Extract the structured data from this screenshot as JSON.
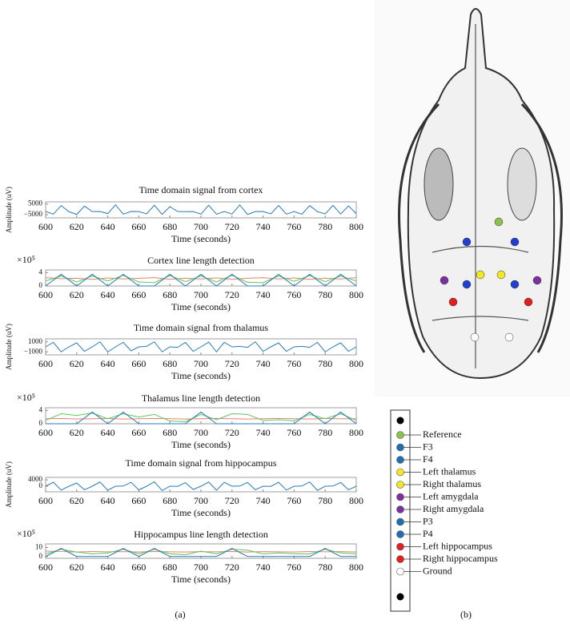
{
  "chart_data": [
    {
      "type": "line",
      "title": "Time domain signal from cortex",
      "xlabel": "Time (seconds)",
      "ylabel": "Amplitude (uV)",
      "x": [
        600,
        605,
        610,
        615,
        620,
        625,
        630,
        635,
        640,
        645,
        650,
        655,
        660,
        665,
        670,
        675,
        680,
        685,
        690,
        695,
        700,
        705,
        710,
        715,
        720,
        725,
        730,
        735,
        740,
        745,
        750,
        755,
        760,
        765,
        770,
        775,
        780,
        785,
        790,
        795,
        800
      ],
      "values": [
        -2000,
        -4500,
        3500,
        -2200,
        -4800,
        3000,
        -2100,
        -2000,
        -4000,
        4200,
        -4500,
        -2000,
        -2100,
        -4200,
        3800,
        -4700,
        2500,
        -2000,
        -2200,
        -2100,
        -4500,
        3900,
        -4600,
        -2000,
        -4400,
        4100,
        -4800,
        -2100,
        -2000,
        -4200,
        3600,
        -4500,
        -2000,
        -4600,
        3500,
        -2100,
        -4300,
        3700,
        -4400,
        3200,
        -4000
      ],
      "color": "#2a7ab8",
      "xlim": [
        600,
        800
      ],
      "xticks": [
        600,
        620,
        640,
        660,
        680,
        700,
        720,
        740,
        760,
        780,
        800
      ],
      "ylim": [
        -8000,
        7000
      ],
      "yticks": [
        {
          "value": -5000,
          "label": "−5000"
        },
        5000
      ]
    },
    {
      "type": "line",
      "title": "Cortex line length detection",
      "xlabel": "Time (seconds)",
      "y_multiplier": "×10⁵",
      "x": [
        600,
        610,
        620,
        630,
        640,
        650,
        660,
        670,
        680,
        690,
        700,
        710,
        720,
        730,
        740,
        750,
        760,
        770,
        780,
        790,
        800
      ],
      "series": [
        {
          "color": "#e8836b",
          "values": [
            250000,
            220000,
            230000,
            200000,
            240000,
            210000,
            230000,
            250000,
            200000,
            230000,
            210000,
            240000,
            200000,
            230000,
            250000,
            210000,
            240000,
            200000,
            230000,
            210000,
            250000
          ]
        },
        {
          "color": "#5ec65e",
          "values": [
            150000,
            300000,
            120000,
            300000,
            150000,
            320000,
            120000,
            100000,
            310000,
            130000,
            300000,
            120000,
            320000,
            110000,
            100000,
            300000,
            140000,
            310000,
            130000,
            300000,
            150000
          ]
        },
        {
          "color": "#2a7ab8",
          "values": [
            0,
            350000,
            0,
            350000,
            0,
            350000,
            0,
            0,
            350000,
            0,
            350000,
            0,
            350000,
            0,
            0,
            350000,
            0,
            350000,
            0,
            350000,
            0
          ]
        }
      ],
      "xlim": [
        600,
        800
      ],
      "xticks": [
        600,
        620,
        640,
        660,
        680,
        700,
        720,
        740,
        760,
        780,
        800
      ],
      "ylim": [
        0,
        480000
      ],
      "yticks": [
        0,
        {
          "value": 400000,
          "label": "4"
        }
      ]
    },
    {
      "type": "line",
      "title": "Time domain signal from thalamus",
      "xlabel": "Time (seconds)",
      "ylabel": "Amplitude (uV)",
      "x": [
        600,
        605,
        610,
        615,
        620,
        625,
        630,
        635,
        640,
        645,
        650,
        655,
        660,
        665,
        670,
        675,
        680,
        685,
        690,
        695,
        700,
        705,
        710,
        715,
        720,
        725,
        730,
        735,
        740,
        745,
        750,
        755,
        760,
        765,
        770,
        775,
        780,
        785,
        790,
        795,
        800
      ],
      "values": [
        0,
        900,
        -1000,
        0,
        800,
        -900,
        0,
        1000,
        -1000,
        0,
        900,
        -800,
        0,
        100,
        1000,
        -1000,
        0,
        -100,
        900,
        -900,
        0,
        950,
        -1000,
        900,
        0,
        100,
        -100,
        1000,
        -900,
        0,
        800,
        -900,
        0,
        100,
        -100,
        900,
        -1000,
        0,
        800,
        -900,
        0
      ],
      "color": "#2a7ab8",
      "xlim": [
        600,
        800
      ],
      "xticks": [
        600,
        620,
        640,
        660,
        680,
        700,
        720,
        740,
        760,
        780,
        800
      ],
      "ylim": [
        -1600,
        1600
      ],
      "yticks": [
        {
          "value": -1000,
          "label": "−1000"
        },
        1000
      ]
    },
    {
      "type": "line",
      "title": "Thalamus line length detection",
      "xlabel": "Time (seconds)",
      "y_multiplier": "×10⁵",
      "x": [
        600,
        610,
        620,
        630,
        640,
        650,
        660,
        670,
        680,
        690,
        700,
        710,
        720,
        730,
        740,
        750,
        760,
        770,
        780,
        790,
        800
      ],
      "series": [
        {
          "color": "#e8836b",
          "values": [
            150000,
            160000,
            140000,
            150000,
            160000,
            140000,
            150000,
            160000,
            150000,
            140000,
            150000,
            160000,
            150000,
            140000,
            150000,
            160000,
            150000,
            140000,
            160000,
            150000,
            150000
          ]
        },
        {
          "color": "#5ec65e",
          "values": [
            100000,
            300000,
            250000,
            320000,
            150000,
            300000,
            200000,
            280000,
            80000,
            60000,
            280000,
            120000,
            300000,
            280000,
            100000,
            120000,
            90000,
            280000,
            150000,
            300000,
            100000
          ]
        },
        {
          "color": "#2a7ab8",
          "values": [
            0,
            0,
            0,
            350000,
            0,
            350000,
            0,
            0,
            0,
            0,
            350000,
            0,
            0,
            0,
            0,
            0,
            0,
            350000,
            0,
            350000,
            0
          ]
        }
      ],
      "xlim": [
        600,
        800
      ],
      "xticks": [
        600,
        620,
        640,
        660,
        680,
        700,
        720,
        740,
        760,
        780,
        800
      ],
      "ylim": [
        0,
        480000
      ],
      "yticks": [
        0,
        {
          "value": 400000,
          "label": "4"
        }
      ]
    },
    {
      "type": "line",
      "title": "Time domain signal from hippocampus",
      "xlabel": "Time (seconds)",
      "ylabel": "Amplitude (uV)",
      "x": [
        600,
        605,
        610,
        615,
        620,
        625,
        630,
        635,
        640,
        645,
        650,
        655,
        660,
        665,
        670,
        675,
        680,
        685,
        690,
        695,
        700,
        705,
        710,
        715,
        720,
        725,
        730,
        735,
        740,
        745,
        750,
        755,
        760,
        765,
        770,
        775,
        780,
        785,
        790,
        795,
        800
      ],
      "values": [
        0,
        2500,
        -2400,
        0,
        2000,
        -2200,
        0,
        2600,
        -2500,
        0,
        100,
        2400,
        -2300,
        0,
        2800,
        -2700,
        0,
        -100,
        2200,
        -2000,
        0,
        2600,
        -2500,
        2400,
        0,
        100,
        2300,
        -2200,
        0,
        -100,
        2500,
        -2400,
        0,
        100,
        2700,
        -2600,
        0,
        100,
        2300,
        -2200,
        0
      ],
      "color": "#2a7ab8",
      "xlim": [
        600,
        800
      ],
      "xticks": [
        600,
        620,
        640,
        660,
        680,
        700,
        720,
        740,
        760,
        780,
        800
      ],
      "ylim": [
        -3500,
        5500
      ],
      "yticks": [
        0,
        4000
      ]
    },
    {
      "type": "line",
      "title": "Hippocampus line length detection",
      "xlabel": "Time (seconds)",
      "y_multiplier": "×10⁵",
      "x": [
        600,
        610,
        620,
        630,
        640,
        650,
        660,
        670,
        680,
        690,
        700,
        710,
        720,
        730,
        740,
        750,
        760,
        770,
        780,
        790,
        800
      ],
      "series": [
        {
          "color": "#e8836b",
          "values": [
            600000,
            550000,
            500000,
            560000,
            520000,
            540000,
            500000,
            560000,
            520000,
            500000,
            540000,
            520000,
            560000,
            500000,
            540000,
            520000,
            500000,
            560000,
            520000,
            540000,
            500000
          ]
        },
        {
          "color": "#5ec65e",
          "values": [
            300000,
            800000,
            500000,
            300000,
            400000,
            800000,
            300000,
            800000,
            300000,
            200000,
            600000,
            300000,
            800000,
            700000,
            300000,
            400000,
            300000,
            300000,
            800000,
            400000,
            300000
          ]
        },
        {
          "color": "#2a7ab8",
          "values": [
            0,
            900000,
            0,
            0,
            0,
            900000,
            0,
            900000,
            0,
            0,
            0,
            0,
            900000,
            0,
            0,
            0,
            0,
            0,
            900000,
            0,
            0
          ]
        }
      ],
      "xlim": [
        600,
        800
      ],
      "xticks": [
        600,
        620,
        640,
        660,
        680,
        700,
        720,
        740,
        760,
        780,
        800
      ],
      "ylim": [
        -200000,
        1400000
      ],
      "yticks": [
        0,
        {
          "value": 1000000,
          "label": "10"
        }
      ]
    }
  ],
  "panel_labels": [
    "(a)",
    "(b)"
  ],
  "electrode_legend": [
    {
      "label": "Reference",
      "color": "#8bc34a"
    },
    {
      "label": "F3",
      "color": "#1f6fb0"
    },
    {
      "label": "F4",
      "color": "#1f6fb0"
    },
    {
      "label": "Left thalamus",
      "color": "#f5e625"
    },
    {
      "label": "Right thalamus",
      "color": "#f5e625"
    },
    {
      "label": "Left amygdala",
      "color": "#7b2fa0"
    },
    {
      "label": "Right amygdala",
      "color": "#7b2fa0"
    },
    {
      "label": "P3",
      "color": "#1f6fb0"
    },
    {
      "label": "P4",
      "color": "#1f6fb0"
    },
    {
      "label": "Left hippocampus",
      "color": "#e02020"
    },
    {
      "label": "Right hippocampus",
      "color": "#e02020"
    },
    {
      "label": "Ground",
      "color": "#ffffff"
    }
  ]
}
